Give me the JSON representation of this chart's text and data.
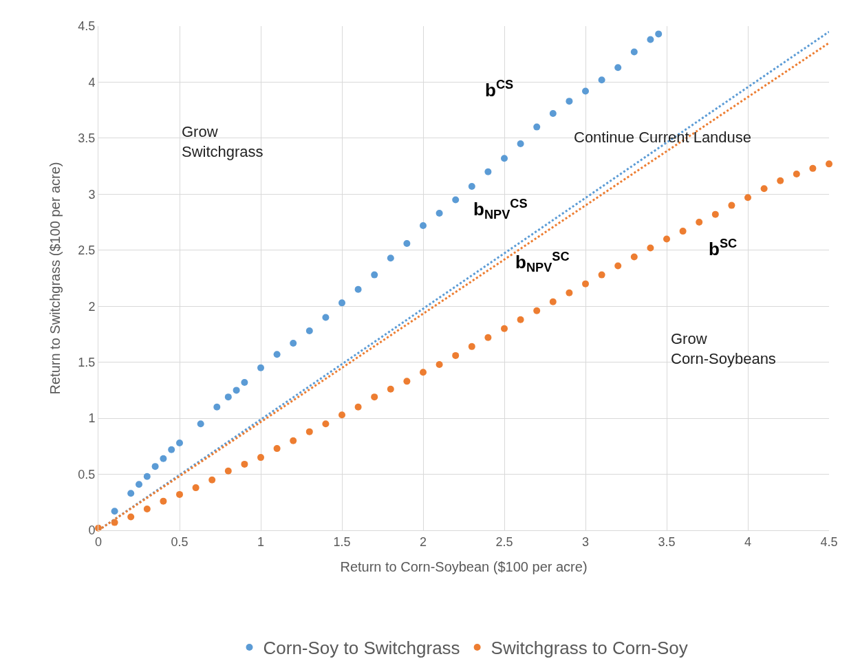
{
  "chart_data": {
    "type": "scatter",
    "xlabel": "Return to Corn-Soybean ($100 per acre)",
    "ylabel": "Return to Switchgrass ($100 per acre)",
    "xlim": [
      0,
      4.5
    ],
    "xticks": [
      0,
      0.5,
      1,
      1.5,
      2,
      2.5,
      3,
      3.5,
      4,
      4.5
    ],
    "ylim": [
      0,
      4.5
    ],
    "yticks": [
      0,
      0.5,
      1,
      1.5,
      2,
      2.5,
      3,
      3.5,
      4,
      4.5
    ],
    "grid": true,
    "legend": "bottom",
    "marker": "circle",
    "series": [
      {
        "name": "Corn-Soy to Switchgrass",
        "color": "#5b9bd5",
        "x": [
          0.1,
          0.2,
          0.25,
          0.3,
          0.35,
          0.4,
          0.45,
          0.5,
          0.63,
          0.73,
          0.8,
          0.85,
          0.9,
          1.0,
          1.1,
          1.2,
          1.3,
          1.4,
          1.5,
          1.6,
          1.7,
          1.8,
          1.9,
          2.0,
          2.1,
          2.2,
          2.3,
          2.4,
          2.5,
          2.6,
          2.7,
          2.8,
          2.9,
          3.0,
          3.1,
          3.2,
          3.3,
          3.4,
          3.45
        ],
        "values": [
          0.17,
          0.33,
          0.41,
          0.48,
          0.57,
          0.64,
          0.72,
          0.78,
          0.95,
          1.1,
          1.19,
          1.25,
          1.32,
          1.45,
          1.57,
          1.67,
          1.78,
          1.9,
          2.03,
          2.15,
          2.28,
          2.43,
          2.56,
          2.72,
          2.83,
          2.95,
          3.07,
          3.2,
          3.32,
          3.45,
          3.6,
          3.72,
          3.83,
          3.92,
          4.02,
          4.13,
          4.27,
          4.38,
          4.43
        ]
      },
      {
        "name": "Switchgrass to Corn-Soy",
        "color": "#ed7d31",
        "x": [
          0,
          0.1,
          0.2,
          0.3,
          0.4,
          0.5,
          0.6,
          0.7,
          0.8,
          0.9,
          1.0,
          1.1,
          1.2,
          1.3,
          1.4,
          1.5,
          1.6,
          1.7,
          1.8,
          1.9,
          2.0,
          2.1,
          2.2,
          2.3,
          2.4,
          2.5,
          2.6,
          2.7,
          2.8,
          2.9,
          3.0,
          3.1,
          3.2,
          3.3,
          3.4,
          3.5,
          3.6,
          3.7,
          3.8,
          3.9,
          4.0,
          4.1,
          4.2,
          4.3,
          4.4,
          4.5
        ],
        "values": [
          0.02,
          0.07,
          0.12,
          0.19,
          0.26,
          0.32,
          0.38,
          0.45,
          0.53,
          0.59,
          0.65,
          0.73,
          0.8,
          0.88,
          0.95,
          1.03,
          1.1,
          1.19,
          1.26,
          1.33,
          1.41,
          1.48,
          1.56,
          1.64,
          1.72,
          1.8,
          1.88,
          1.96,
          2.04,
          2.12,
          2.2,
          2.28,
          2.36,
          2.44,
          2.52,
          2.6,
          2.67,
          2.75,
          2.82,
          2.9,
          2.97,
          3.05,
          3.12,
          3.18,
          3.23,
          3.27
        ]
      },
      {
        "type": "line",
        "marker": "none",
        "line_style": "dotted",
        "color": "#5b9bd5",
        "x": [
          0,
          4.5
        ],
        "values": [
          0,
          4.45
        ]
      },
      {
        "type": "line",
        "marker": "none",
        "line_style": "dotted",
        "color": "#ed7d31",
        "x": [
          0,
          4.5
        ],
        "values": [
          0,
          4.35
        ]
      }
    ],
    "annotations": [
      "b$^{CS}$",
      "b$_{NPV}$$^{CS}$",
      "b$_{NPV}$$^{SC}$",
      "b$^{SC}$",
      "Grow\nSwitchgrass",
      "Continue Current Landuse",
      "Grow\nCorn-Soybeans"
    ]
  }
}
